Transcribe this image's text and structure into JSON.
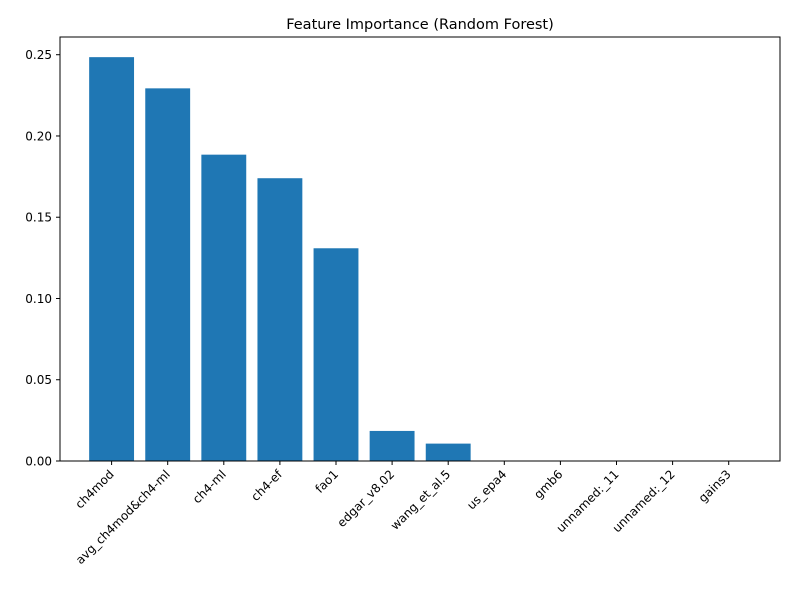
{
  "chart_data": {
    "type": "bar",
    "title": "Feature Importance (Random Forest)",
    "xlabel": "",
    "ylabel": "",
    "categories": [
      "ch4mod",
      "avg_ch4mod&ch4-ml",
      "ch4-ml",
      "ch4-ef",
      "fao1",
      "edgar_v8.02",
      "wang_et_al.5",
      "us_epa4",
      "gmb6",
      "unnamed:_11",
      "unnamed:_12",
      "gains3"
    ],
    "values": [
      0.2485,
      0.2293,
      0.1885,
      0.174,
      0.1309,
      0.0185,
      0.0107,
      0.0,
      0.0,
      0.0,
      0.0,
      0.0
    ],
    "ylim": [
      0,
      0.2609
    ],
    "yticks": [
      0.0,
      0.05,
      0.1,
      0.15,
      0.2,
      0.25
    ],
    "ytick_labels": [
      "0.00",
      "0.05",
      "0.10",
      "0.15",
      "0.20",
      "0.25"
    ],
    "grid": false,
    "bar_color": "#1f77b4"
  }
}
